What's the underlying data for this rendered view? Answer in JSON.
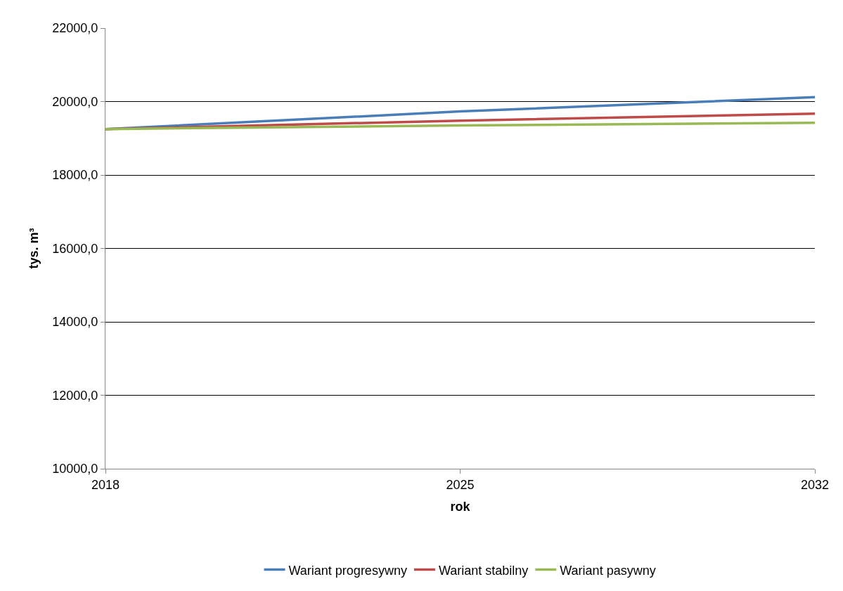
{
  "chart_data": {
    "type": "line",
    "xlabel": "rok",
    "ylabel": "tys. m³",
    "x": [
      2018,
      2025,
      2032
    ],
    "series": [
      {
        "name": "Wariant progresywny",
        "color": "#4a7ebb",
        "values": [
          19250,
          19730,
          20120
        ]
      },
      {
        "name": "Wariant stabilny",
        "color": "#be4b48",
        "values": [
          19250,
          19480,
          19670
        ]
      },
      {
        "name": "Wariant pasywny",
        "color": "#98b954",
        "values": [
          19250,
          19350,
          19420
        ]
      }
    ],
    "xlim": [
      2018,
      2032
    ],
    "xticks": [
      2018,
      2025,
      2032
    ],
    "ylim": [
      10000,
      22000
    ],
    "yticks": [
      {
        "value": 10000,
        "label": "10000,0"
      },
      {
        "value": 12000,
        "label": "12000,0"
      },
      {
        "value": 14000,
        "label": "14000,0"
      },
      {
        "value": 16000,
        "label": "16000,0"
      },
      {
        "value": 18000,
        "label": "18000,0"
      },
      {
        "value": 20000,
        "label": "20000,0"
      },
      {
        "value": 22000,
        "label": "22000,0"
      }
    ],
    "grid": "y",
    "legend": "bottom",
    "marker": "none",
    "line_style": "solid"
  }
}
